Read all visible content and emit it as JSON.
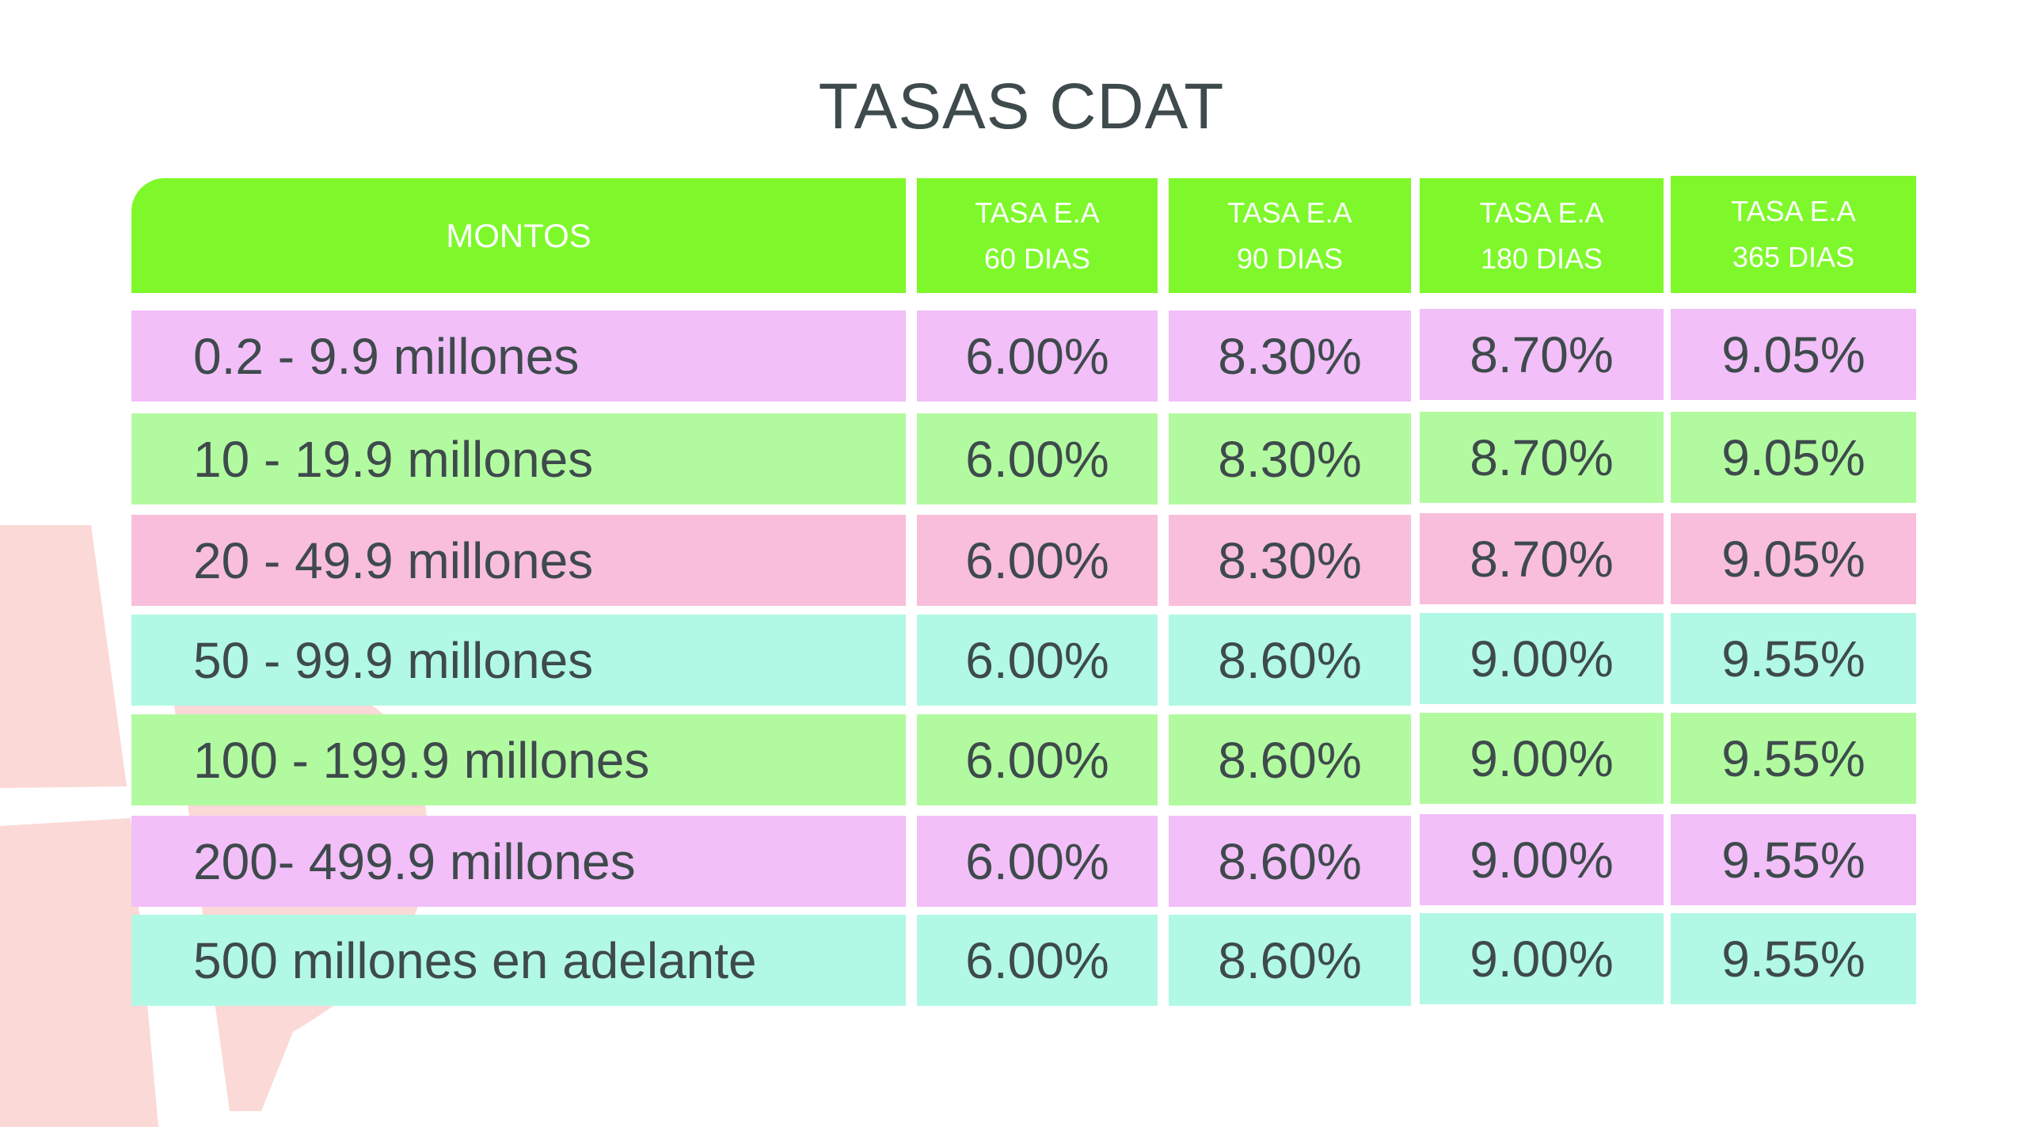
{
  "title": "TASAS CDAT",
  "header": {
    "montos": "MONTOS",
    "columns": [
      {
        "line1": "TASA E.A",
        "line2": "60 DIAS"
      },
      {
        "line1": "TASA E.A",
        "line2": "90 DIAS"
      },
      {
        "line1": "TASA E.A",
        "line2": "180 DIAS"
      },
      {
        "line1": "TASA E.A",
        "line2": "365 DIAS"
      }
    ]
  },
  "rows": [
    {
      "monto": "0.2 - 9.9 millones",
      "rates": [
        "6.00%",
        "8.30%",
        "8.70%",
        "9.05%"
      ],
      "color": "#f2bff8"
    },
    {
      "monto": "10 - 19.9 millones",
      "rates": [
        "6.00%",
        "8.30%",
        "8.70%",
        "9.05%"
      ],
      "color": "#b2fa9f"
    },
    {
      "monto": "20 - 49.9 millones",
      "rates": [
        "6.00%",
        "8.30%",
        "8.70%",
        "9.05%"
      ],
      "color": "#f8bedb"
    },
    {
      "monto": "50 - 99.9 millones",
      "rates": [
        "6.00%",
        "8.60%",
        "9.00%",
        "9.55%"
      ],
      "color": "#b1f8e5"
    },
    {
      "monto": "100 - 199.9 millones",
      "rates": [
        "6.00%",
        "8.60%",
        "9.00%",
        "9.55%"
      ],
      "color": "#b2fa9f"
    },
    {
      "monto": "200- 499.9 millones",
      "rates": [
        "6.00%",
        "8.60%",
        "9.00%",
        "9.55%"
      ],
      "color": "#f2bff8"
    },
    {
      "monto": "500 millones en adelante",
      "rates": [
        "6.00%",
        "8.60%",
        "9.00%",
        "9.55%"
      ],
      "color": "#b1f8e5"
    }
  ],
  "colors": {
    "header": "#7ef82a",
    "text": "#3e4a4c",
    "decoration": "#fbd9d7"
  }
}
